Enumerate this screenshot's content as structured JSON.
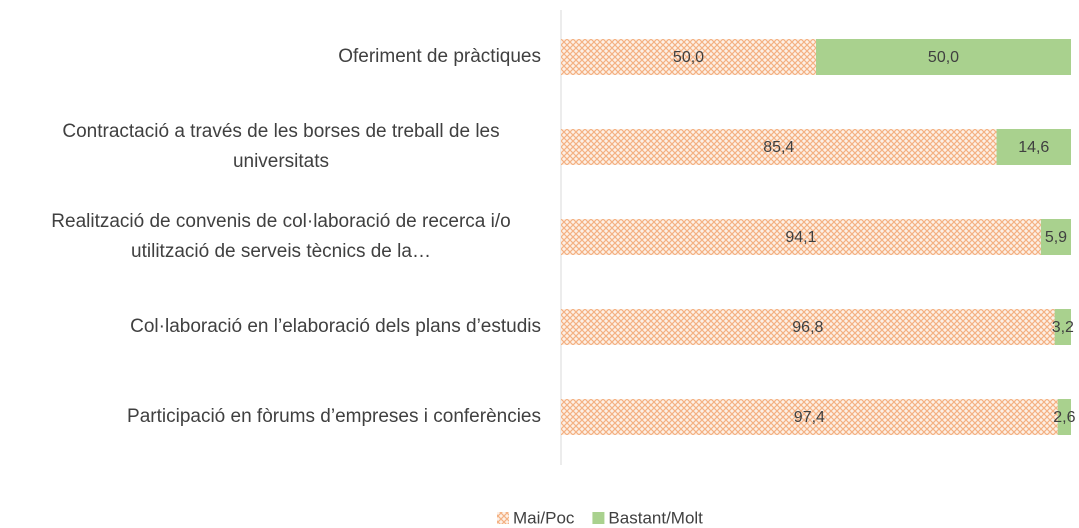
{
  "chart_data": {
    "type": "stacked_bar_horizontal",
    "categories": [
      "Oferiment de pràctiques",
      "Contractació a través de les borses de treball de les universitats",
      "Realització de convenis de col·laboració de recerca i/o utilització de serveis tècnics de la…",
      "Col·laboració en l’elaboració dels plans d’estudis",
      "Participació en fòrums d’empreses i conferències"
    ],
    "series": [
      {
        "name": "Mai/Poc",
        "color": "#ed7d31",
        "pattern": "crosshatch",
        "values": [
          50.0,
          85.4,
          94.1,
          96.8,
          97.4
        ],
        "value_labels": [
          "50,0",
          "85,4",
          "94,1",
          "96,8",
          "97,4"
        ]
      },
      {
        "name": "Bastant/Molt",
        "color": "#a9d18e",
        "values": [
          50.0,
          14.6,
          5.9,
          3.2,
          2.6
        ],
        "value_labels": [
          "50,0",
          "14,6",
          "5,9",
          "3,2",
          "2,6"
        ]
      }
    ],
    "xlim": [
      0,
      100
    ],
    "legend": "bottom"
  }
}
